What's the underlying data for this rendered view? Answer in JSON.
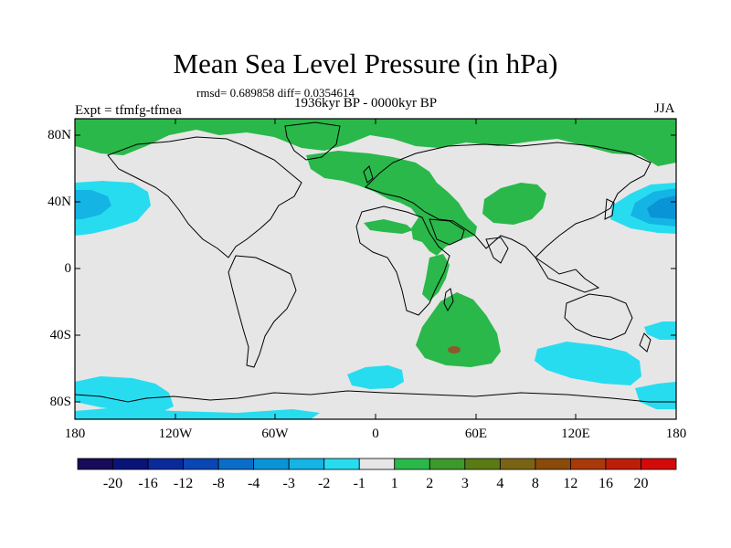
{
  "title": "Mean Sea Level Pressure (in hPa)",
  "stats_line": "rmsd= 0.689858 diff= 0.0354614",
  "period_line": "1936kyr BP - 0000kyr BP",
  "experiment_label": "Expt = tfmfg-tfmea",
  "season_label": "JJA",
  "y_axis_labels": [
    "80N",
    "40N",
    "0",
    "40S",
    "80S"
  ],
  "x_axis_labels": [
    "180",
    "120W",
    "60W",
    "0",
    "60E",
    "120E",
    "180"
  ],
  "colorbar": {
    "colors": [
      "#1a0a5a",
      "#0a1478",
      "#0a2a9a",
      "#0a46b4",
      "#0a6ec8",
      "#0a94d8",
      "#14b4e4",
      "#28dcf0",
      "#e6e6e6",
      "#2ab84a",
      "#3c9a2a",
      "#5a7a14",
      "#7a6414",
      "#8a4a0a",
      "#a83a0a",
      "#bc1e0a",
      "#d40a0a"
    ],
    "labels": [
      "-20",
      "-16",
      "-12",
      "-8",
      "-4",
      "-3",
      "-2",
      "-1",
      "1",
      "2",
      "3",
      "4",
      "8",
      "12",
      "16",
      "20"
    ]
  },
  "map_colors": {
    "background": "#e6e6e6",
    "positive_1_2": "#2ab84a",
    "positive_3_4": "#8a5a2a",
    "negative_1_2": "#28dcf0",
    "negative_2_3": "#14b4e4",
    "negative_3_4": "#0a94d8"
  }
}
